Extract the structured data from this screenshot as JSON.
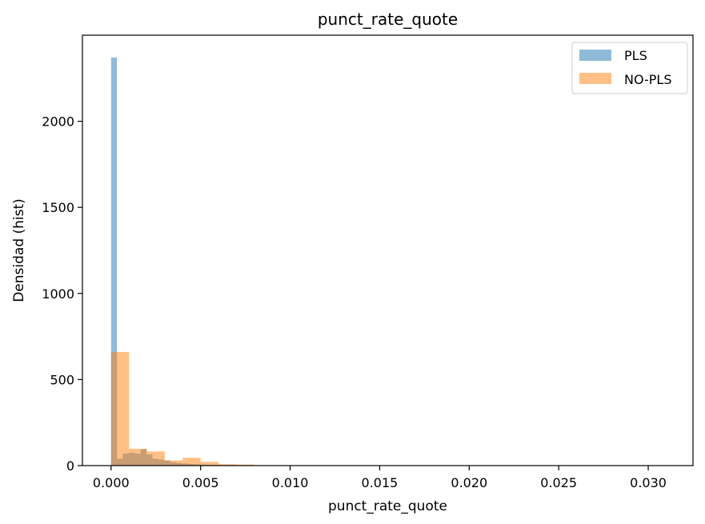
{
  "chart_data": {
    "type": "histogram",
    "title": "punct_rate_quote",
    "xlabel": "punct_rate_quote",
    "ylabel": "Densidad (hist)",
    "xlim": [
      -0.0016,
      0.0325
    ],
    "ylim": [
      0,
      2500
    ],
    "xticks": [
      0.0,
      0.005,
      0.01,
      0.015,
      0.02,
      0.025,
      0.03
    ],
    "xtick_labels": [
      "0.000",
      "0.005",
      "0.010",
      "0.015",
      "0.020",
      "0.025",
      "0.030"
    ],
    "yticks": [
      0,
      500,
      1000,
      1500,
      2000
    ],
    "ytick_labels": [
      "0",
      "500",
      "1000",
      "1500",
      "2000"
    ],
    "legend_position": "top-right",
    "grid": false,
    "series": [
      {
        "name": "PLS",
        "color": "#1f77b4",
        "alpha": 0.5,
        "bins": [
          {
            "x0": 0.0,
            "x1": 0.00033,
            "value": 2370
          },
          {
            "x0": 0.00033,
            "x1": 0.00066,
            "value": 40
          },
          {
            "x0": 0.00066,
            "x1": 0.00099,
            "value": 70
          },
          {
            "x0": 0.00099,
            "x1": 0.00132,
            "value": 75
          },
          {
            "x0": 0.00132,
            "x1": 0.00165,
            "value": 70
          },
          {
            "x0": 0.00165,
            "x1": 0.00198,
            "value": 95
          },
          {
            "x0": 0.00198,
            "x1": 0.00231,
            "value": 65
          },
          {
            "x0": 0.00231,
            "x1": 0.00264,
            "value": 40
          },
          {
            "x0": 0.00264,
            "x1": 0.00297,
            "value": 35
          },
          {
            "x0": 0.00297,
            "x1": 0.0033,
            "value": 30
          },
          {
            "x0": 0.0033,
            "x1": 0.00363,
            "value": 20
          },
          {
            "x0": 0.00363,
            "x1": 0.00396,
            "value": 15
          },
          {
            "x0": 0.00396,
            "x1": 0.00429,
            "value": 12
          },
          {
            "x0": 0.00429,
            "x1": 0.00462,
            "value": 10
          },
          {
            "x0": 0.00462,
            "x1": 0.00495,
            "value": 8
          },
          {
            "x0": 0.00495,
            "x1": 0.00528,
            "value": 6
          },
          {
            "x0": 0.00528,
            "x1": 0.00561,
            "value": 5
          },
          {
            "x0": 0.00561,
            "x1": 0.00594,
            "value": 4
          },
          {
            "x0": 0.00594,
            "x1": 0.00627,
            "value": 4
          },
          {
            "x0": 0.00627,
            "x1": 0.0066,
            "value": 3
          }
        ]
      },
      {
        "name": "NO-PLS",
        "color": "#ff7f0e",
        "alpha": 0.5,
        "bins": [
          {
            "x0": 0.0,
            "x1": 0.001,
            "value": 660
          },
          {
            "x0": 0.001,
            "x1": 0.002,
            "value": 98
          },
          {
            "x0": 0.002,
            "x1": 0.003,
            "value": 82
          },
          {
            "x0": 0.003,
            "x1": 0.004,
            "value": 30
          },
          {
            "x0": 0.004,
            "x1": 0.005,
            "value": 45
          },
          {
            "x0": 0.005,
            "x1": 0.006,
            "value": 22
          },
          {
            "x0": 0.006,
            "x1": 0.007,
            "value": 8
          },
          {
            "x0": 0.007,
            "x1": 0.008,
            "value": 6
          },
          {
            "x0": 0.008,
            "x1": 0.009,
            "value": 2
          },
          {
            "x0": 0.009,
            "x1": 0.01,
            "value": 1
          },
          {
            "x0": 0.012,
            "x1": 0.013,
            "value": 1
          },
          {
            "x0": 0.018,
            "x1": 0.019,
            "value": 1
          },
          {
            "x0": 0.022,
            "x1": 0.023,
            "value": 1
          },
          {
            "x0": 0.03,
            "x1": 0.031,
            "value": 1
          }
        ]
      }
    ]
  }
}
